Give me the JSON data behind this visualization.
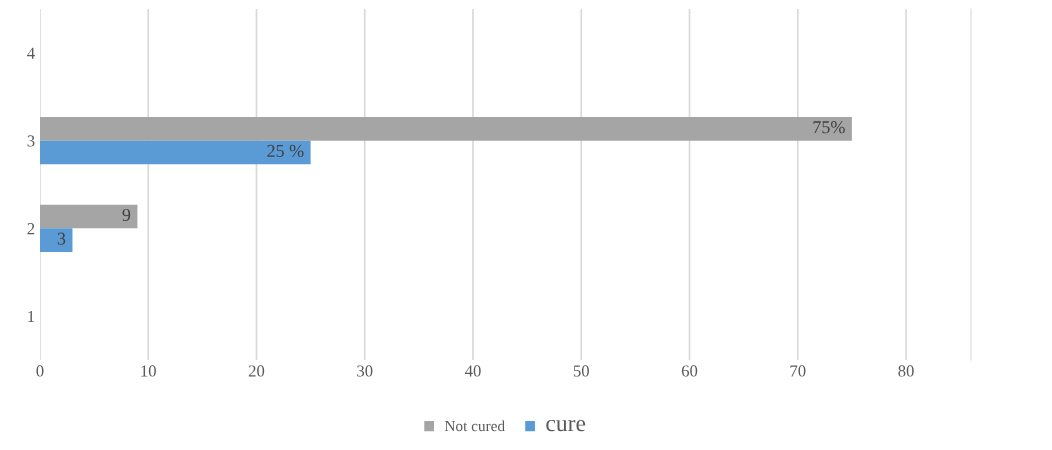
{
  "chart_data": {
    "type": "bar",
    "orientation": "horizontal",
    "categories": [
      "4",
      "3",
      "2",
      "1"
    ],
    "series": [
      {
        "name": "Not cured",
        "color": "#a5a5a5",
        "values": [
          null,
          75,
          9,
          null
        ],
        "value_labels": [
          null,
          "75%",
          "9",
          null
        ]
      },
      {
        "name": "cure",
        "color": "#5b9bd5",
        "values": [
          null,
          25,
          3,
          null
        ],
        "value_labels": [
          null,
          "25 %",
          "3",
          null
        ]
      }
    ],
    "xlim": [
      0,
      86
    ],
    "xticks": [
      0,
      10,
      20,
      30,
      40,
      50,
      60,
      70,
      80
    ],
    "grid": "x",
    "legend": "bottom"
  }
}
